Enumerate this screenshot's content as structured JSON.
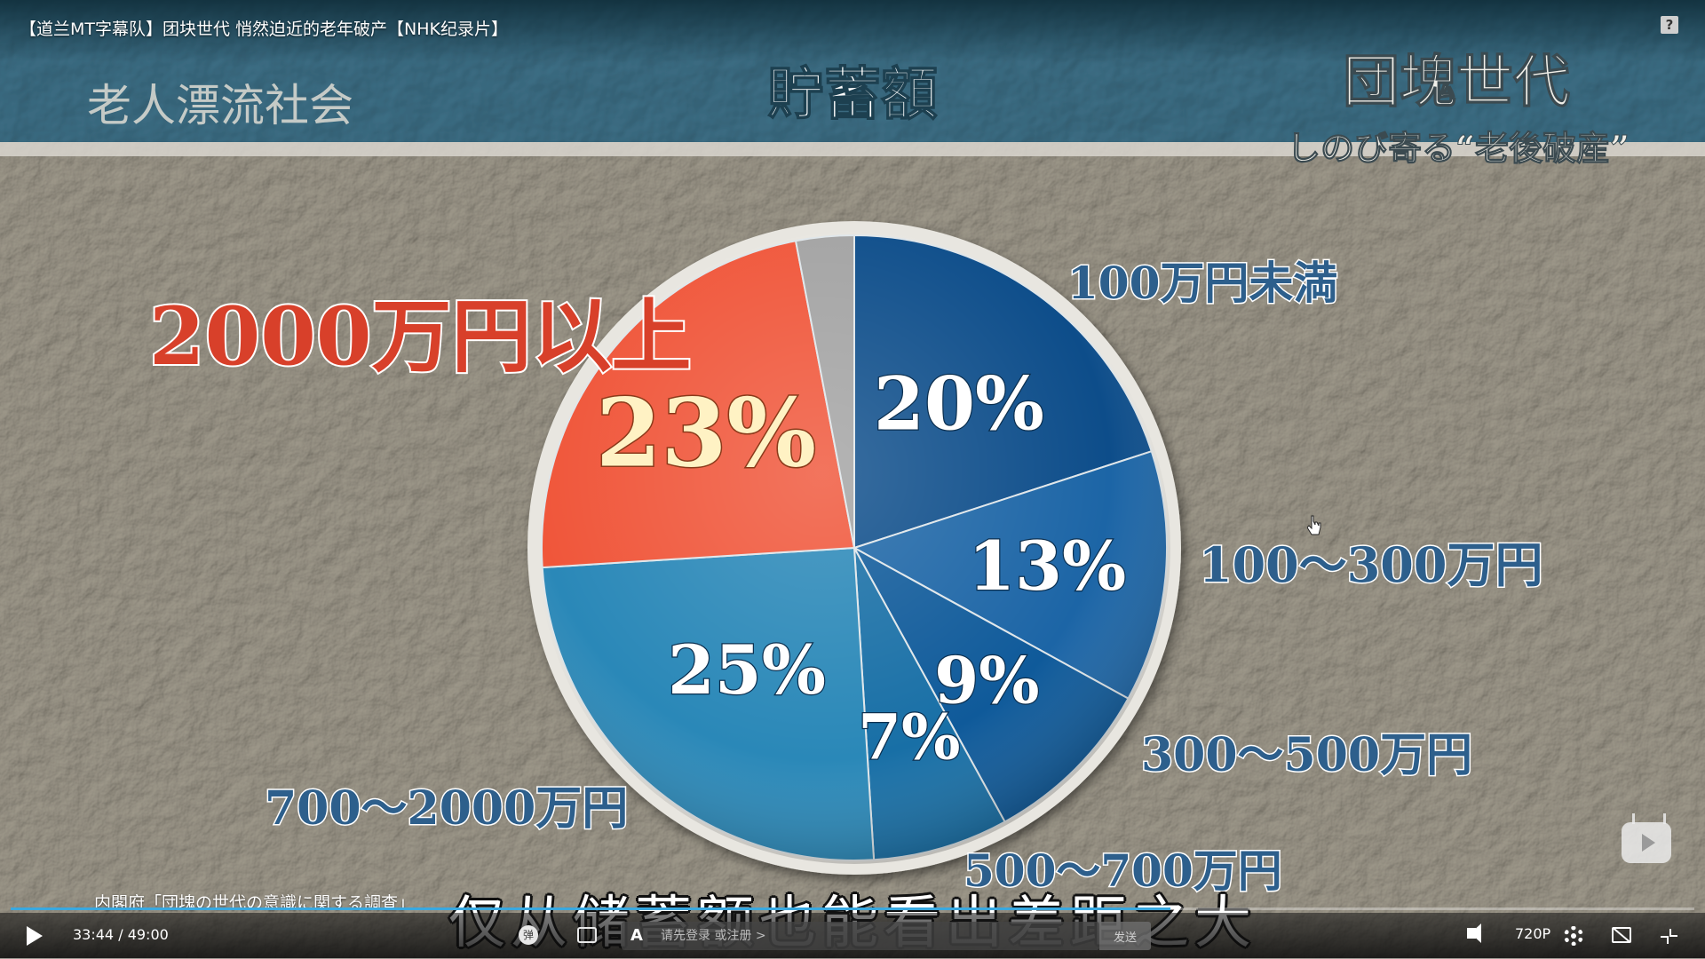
{
  "window": {
    "title": "【道兰MT字幕队】团块世代 悄然迫近的老年破产【NHK纪录片】"
  },
  "video": {
    "program_logo": "老人漂流社会",
    "program_title_main": "団塊世代",
    "program_title_sub": "しのび寄る“老後破産”",
    "subtitle": "仅从储蓄额也能看出差距之大",
    "source_note": "内閣府「団塊の世代の意識に関する調査」"
  },
  "colors": {
    "wall": "#b3afa5",
    "banner": "#2f6f86",
    "deep_blue": "#0a4a86",
    "mid_blue": "#1f6aa8",
    "teal_blue": "#2c86b4",
    "red": "#f0563a",
    "gray": "#9d9d9d",
    "label_blue": "#2d5f8c",
    "label_red": "#d8402a"
  },
  "chart_data": {
    "type": "pie",
    "title": "貯蓄額",
    "start_angle_deg": 0,
    "slices": [
      {
        "label": "100万円未満",
        "value": 20,
        "display": "20%",
        "color": "#0d4d8a"
      },
      {
        "label": "100～300万円",
        "value": 13,
        "display": "13%",
        "color": "#1c65a6"
      },
      {
        "label": "300～500万円",
        "value": 9,
        "display": "9%",
        "color": "#0f5a9a"
      },
      {
        "label": "500～700万円",
        "value": 7,
        "display": "7%",
        "color": "#186fa6"
      },
      {
        "label": "700～2000万円",
        "value": 25,
        "display": "25%",
        "color": "#2a88b8"
      },
      {
        "label": "2000万円以上",
        "value": 23,
        "display": "23%",
        "color": "#f0563a"
      },
      {
        "label": "",
        "value": 3,
        "display": "",
        "color": "#a3a3a3"
      }
    ]
  },
  "controls": {
    "current_time": "33:44",
    "duration": "49:00",
    "progress_fraction": 0.689,
    "danmaku_toggle_label": "弹",
    "danmaku_placeholder": "请先登录 或注册 >",
    "danmaku_style_icon": "A",
    "send_label": "发送",
    "quality_label": "720P",
    "icons": [
      "play-icon",
      "danmaku-settings-icon",
      "volume-icon",
      "gear-icon",
      "mini-window-icon",
      "exit-fullscreen-icon",
      "help-icon"
    ]
  }
}
